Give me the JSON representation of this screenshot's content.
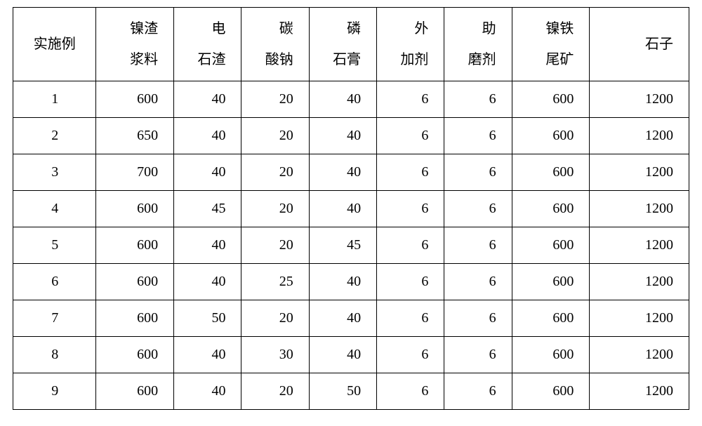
{
  "table": {
    "type": "table",
    "background_color": "#ffffff",
    "border_color": "#000000",
    "text_color": "#000000",
    "font_size_pt": 15,
    "font_family": "SimSun",
    "columns": [
      {
        "lines": [
          "实施例"
        ],
        "width_pct": 12.3,
        "align_header": "center"
      },
      {
        "lines": [
          "镍渣",
          "浆料"
        ],
        "width_pct": 11.5,
        "align_header": "right"
      },
      {
        "lines": [
          "电",
          "石渣"
        ],
        "width_pct": 10.0,
        "align_header": "right"
      },
      {
        "lines": [
          "碳",
          "酸钠"
        ],
        "width_pct": 10.0,
        "align_header": "right"
      },
      {
        "lines": [
          "磷",
          "石膏"
        ],
        "width_pct": 10.0,
        "align_header": "right"
      },
      {
        "lines": [
          "外",
          "加剂"
        ],
        "width_pct": 10.0,
        "align_header": "right"
      },
      {
        "lines": [
          "助",
          "磨剂"
        ],
        "width_pct": 10.0,
        "align_header": "right"
      },
      {
        "lines": [
          "镍铁",
          "尾矿"
        ],
        "width_pct": 11.5,
        "align_header": "right"
      },
      {
        "lines": [
          "石子"
        ],
        "width_pct": 14.7,
        "align_header": "right"
      }
    ],
    "rows": [
      [
        "1",
        600,
        40,
        20,
        40,
        6,
        6,
        600,
        1200
      ],
      [
        "2",
        650,
        40,
        20,
        40,
        6,
        6,
        600,
        1200
      ],
      [
        "3",
        700,
        40,
        20,
        40,
        6,
        6,
        600,
        1200
      ],
      [
        "4",
        600,
        45,
        20,
        40,
        6,
        6,
        600,
        1200
      ],
      [
        "5",
        600,
        40,
        20,
        45,
        6,
        6,
        600,
        1200
      ],
      [
        "6",
        600,
        40,
        25,
        40,
        6,
        6,
        600,
        1200
      ],
      [
        "7",
        600,
        50,
        20,
        40,
        6,
        6,
        600,
        1200
      ],
      [
        "8",
        600,
        40,
        30,
        40,
        6,
        6,
        600,
        1200
      ],
      [
        "9",
        600,
        40,
        20,
        50,
        6,
        6,
        600,
        1200
      ]
    ]
  }
}
